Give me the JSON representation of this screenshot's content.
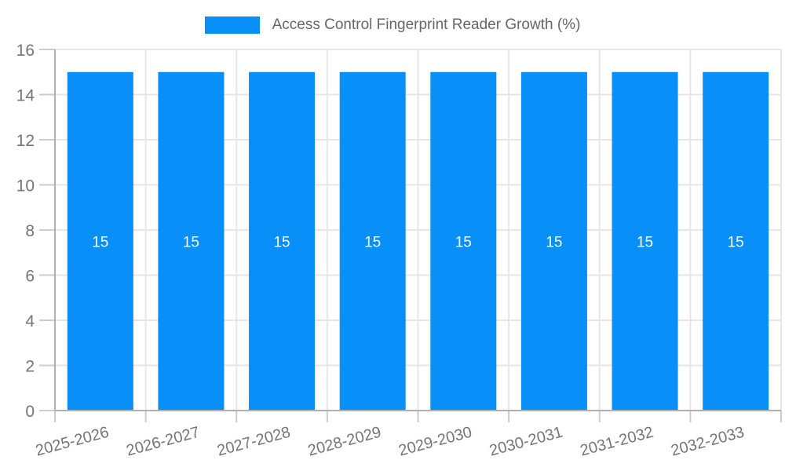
{
  "legend": {
    "label": "Access Control Fingerprint Reader Growth (%)"
  },
  "chart_data": {
    "type": "bar",
    "title": "Access Control Fingerprint Reader Growth (%)",
    "categories": [
      "2025-2026",
      "2026-2027",
      "2027-2028",
      "2028-2029",
      "2029-2030",
      "2030-2031",
      "2031-2032",
      "2032-2033"
    ],
    "values": [
      15,
      15,
      15,
      15,
      15,
      15,
      15,
      15
    ],
    "bar_labels": [
      "15",
      "15",
      "15",
      "15",
      "15",
      "15",
      "15",
      "15"
    ],
    "xlabel": "",
    "ylabel": "",
    "ylim": [
      0,
      16
    ],
    "y_ticks": [
      0,
      2,
      4,
      6,
      8,
      10,
      12,
      14,
      16
    ],
    "grid": true,
    "legend_position": "top-center",
    "x_label_rotation_deg": -15,
    "colors": {
      "bar": "#0890F8",
      "bar_label": "#ffffff",
      "axis_line": "#b0b0b0",
      "tick_line": "#cccccc",
      "gridline": "#e6e6e6",
      "tick_label": "#757575",
      "legend_text": "#666666",
      "background": "#ffffff"
    }
  }
}
